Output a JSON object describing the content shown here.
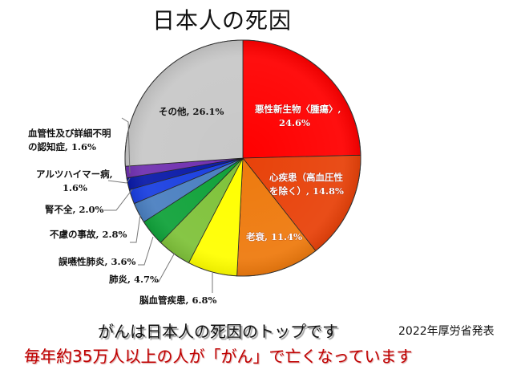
{
  "title": "日本人の死因",
  "chart_data": {
    "type": "pie",
    "title": "日本人の死因",
    "start_angle_deg": 0,
    "direction": "clockwise",
    "slices": [
      {
        "label": "悪性新生物〈腫瘍〉",
        "value": 24.6,
        "color": "#ff0000"
      },
      {
        "label": "心疾患（高血圧性を除く）",
        "value": 14.8,
        "color": "#e8420a"
      },
      {
        "label": "老衰",
        "value": 11.4,
        "color": "#ee7a0e"
      },
      {
        "label": "脳血管疾患",
        "value": 6.8,
        "color": "#ffff00"
      },
      {
        "label": "肺炎",
        "value": 4.7,
        "color": "#7fc23a"
      },
      {
        "label": "誤嚥性肺炎",
        "value": 3.6,
        "color": "#10a23a"
      },
      {
        "label": "不慮の事故",
        "value": 2.8,
        "color": "#4a7fc0"
      },
      {
        "label": "腎不全",
        "value": 2.0,
        "color": "#1a3fe0"
      },
      {
        "label": "アルツハイマー病",
        "value": 1.6,
        "color": "#0a1aa8"
      },
      {
        "label": "血管性及び詳細不明の認知症",
        "value": 1.6,
        "color": "#7030b0"
      },
      {
        "label": "その他",
        "value": 26.1,
        "color": "#c8c8c8"
      }
    ],
    "unit": "%"
  },
  "labels": {
    "cancer_1": "悪性新生物〈腫瘍〉,",
    "cancer_2": "24.6%",
    "heart_1": "心疾患（高血圧性",
    "heart_2": "を除く）, 14.8%",
    "senility": "老衰, 11.4%",
    "cerebro": "脳血管疾患, 6.8%",
    "pneumonia": "肺炎, 4.7%",
    "aspiration": "誤嚥性肺炎, 3.6%",
    "accident": "不慮の事故, 2.8%",
    "renal": "腎不全, 2.0%",
    "alzheimer_1": "アルツハイマー病,",
    "alzheimer_2": "1.6%",
    "dementia_1": "血管性及び詳細不明",
    "dementia_2": "の認知症, 1.6%",
    "other": "その他, 26.1%"
  },
  "footer": {
    "tagline": "がんは日本人の死因のトップです",
    "source": "2022年厚労省発表",
    "message": "毎年約35万人以上の人が「がん」で亡くなっています"
  }
}
